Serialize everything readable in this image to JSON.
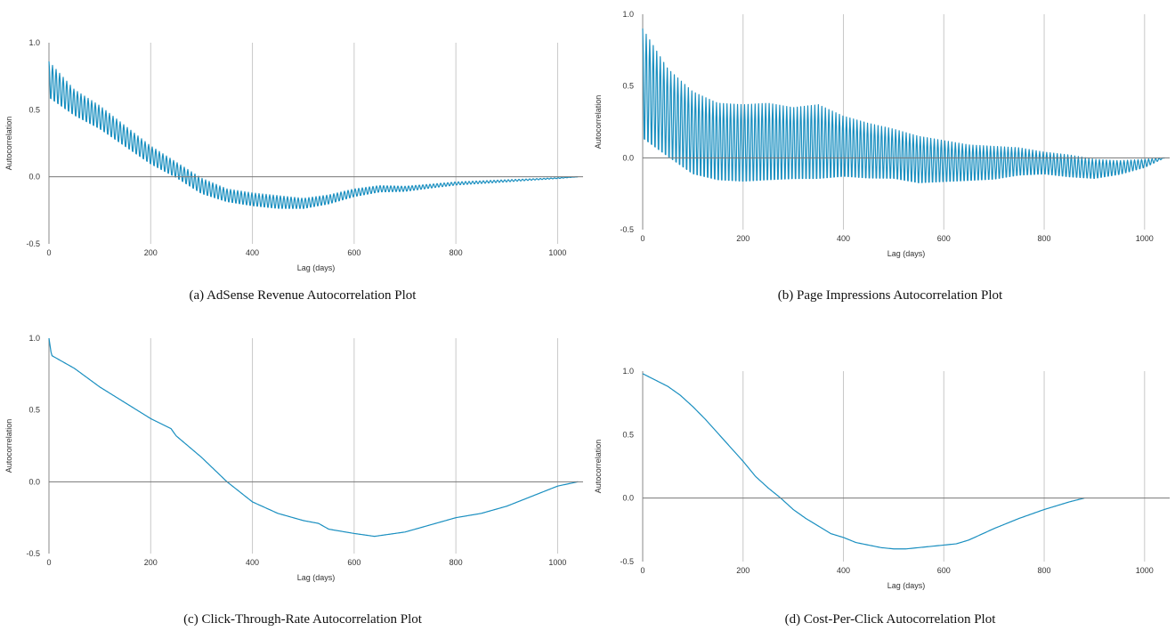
{
  "chart_data": [
    {
      "type": "line",
      "caption": "(a) AdSense Revenue Autocorrelation Plot",
      "xlabel": "Lag (days)",
      "ylabel": "Autocorrelation",
      "xlim": [
        0,
        1050
      ],
      "ylim": [
        -0.5,
        1.0
      ],
      "xticks": [
        "0",
        "200",
        "400",
        "600",
        "800",
        "1000"
      ],
      "yticks": [
        "-0.5",
        "0.0",
        "0.5",
        "1.0"
      ],
      "grid": "vertical",
      "series": [
        {
          "color": "#1a8fc0",
          "oscillation_period_days": 7,
          "x": [
            0,
            50,
            100,
            150,
            200,
            250,
            300,
            350,
            400,
            450,
            500,
            550,
            600,
            650,
            700,
            750,
            800,
            850,
            900,
            950,
            1000,
            1040
          ],
          "mean": [
            0.72,
            0.55,
            0.44,
            0.3,
            0.16,
            0.05,
            -0.07,
            -0.14,
            -0.17,
            -0.19,
            -0.2,
            -0.17,
            -0.12,
            -0.09,
            -0.09,
            -0.07,
            -0.05,
            -0.04,
            -0.03,
            -0.02,
            -0.01,
            0.0
          ],
          "amplitude": [
            0.14,
            0.1,
            0.09,
            0.08,
            0.07,
            0.06,
            0.06,
            0.05,
            0.05,
            0.05,
            0.04,
            0.035,
            0.03,
            0.025,
            0.02,
            0.015,
            0.012,
            0.01,
            0.008,
            0.005,
            0.003,
            0.0
          ]
        }
      ]
    },
    {
      "type": "line",
      "caption": "(b) Page Impressions Autocorrelation Plot",
      "xlabel": "Lag (days)",
      "ylabel": "Autocorrelation",
      "xlim": [
        0,
        1050
      ],
      "ylim": [
        -0.5,
        1.0
      ],
      "xticks": [
        "0",
        "200",
        "400",
        "600",
        "800",
        "1000"
      ],
      "yticks": [
        "-0.5",
        "0.0",
        "0.5",
        "1.0"
      ],
      "grid": "vertical",
      "series": [
        {
          "color": "#1a8fc0",
          "oscillation_period_days": 7,
          "x": [
            0,
            50,
            100,
            150,
            200,
            250,
            300,
            350,
            400,
            450,
            500,
            550,
            600,
            650,
            700,
            750,
            800,
            850,
            900,
            950,
            1000,
            1040
          ],
          "mean": [
            0.5,
            0.3,
            0.16,
            0.1,
            0.09,
            0.1,
            0.09,
            0.1,
            0.07,
            0.04,
            0.02,
            -0.02,
            -0.03,
            -0.04,
            -0.04,
            -0.03,
            -0.04,
            -0.06,
            -0.08,
            -0.07,
            -0.04,
            0.0
          ],
          "amplitude": [
            0.4,
            0.32,
            0.3,
            0.28,
            0.28,
            0.28,
            0.26,
            0.27,
            0.22,
            0.2,
            0.18,
            0.17,
            0.15,
            0.13,
            0.12,
            0.1,
            0.08,
            0.08,
            0.07,
            0.05,
            0.03,
            0.0
          ]
        }
      ]
    },
    {
      "type": "line",
      "caption": "(c) Click-Through-Rate Autocorrelation Plot",
      "xlabel": "Lag (days)",
      "ylabel": "Autocorrelation",
      "xlim": [
        0,
        1050
      ],
      "ylim": [
        -0.5,
        1.0
      ],
      "xticks": [
        "0",
        "200",
        "400",
        "600",
        "800",
        "1000"
      ],
      "yticks": [
        "-0.5",
        "0.0",
        "0.5",
        "1.0"
      ],
      "grid": "vertical",
      "series": [
        {
          "color": "#1a8fc0",
          "x": [
            0,
            5,
            20,
            50,
            100,
            150,
            200,
            240,
            250,
            300,
            350,
            400,
            450,
            500,
            530,
            550,
            600,
            640,
            700,
            750,
            800,
            850,
            900,
            950,
            1000,
            1040
          ],
          "y": [
            1.0,
            0.88,
            0.85,
            0.79,
            0.66,
            0.55,
            0.44,
            0.37,
            0.32,
            0.17,
            0.0,
            -0.14,
            -0.22,
            -0.27,
            -0.29,
            -0.33,
            -0.36,
            -0.38,
            -0.35,
            -0.3,
            -0.25,
            -0.22,
            -0.17,
            -0.1,
            -0.03,
            0.0
          ]
        }
      ]
    },
    {
      "type": "line",
      "caption": "(d) Cost-Per-Click Autocorrelation Plot",
      "xlabel": "Lag (days)",
      "ylabel": "Autocorrelation",
      "xlim": [
        0,
        1050
      ],
      "ylim": [
        -0.5,
        1.0
      ],
      "xticks": [
        "0",
        "200",
        "400",
        "600",
        "800",
        "1000"
      ],
      "yticks": [
        "-0.5",
        "0.0",
        "0.5",
        "1.0"
      ],
      "grid": "vertical",
      "series": [
        {
          "color": "#1a8fc0",
          "x": [
            0,
            25,
            50,
            75,
            100,
            125,
            150,
            175,
            200,
            225,
            250,
            275,
            300,
            325,
            350,
            375,
            400,
            425,
            450,
            475,
            500,
            525,
            550,
            575,
            600,
            625,
            650,
            700,
            750,
            800,
            850,
            880
          ],
          "y": [
            0.98,
            0.93,
            0.88,
            0.81,
            0.72,
            0.62,
            0.51,
            0.4,
            0.29,
            0.17,
            0.08,
            0.0,
            -0.09,
            -0.16,
            -0.22,
            -0.28,
            -0.31,
            -0.35,
            -0.37,
            -0.39,
            -0.4,
            -0.4,
            -0.39,
            -0.38,
            -0.37,
            -0.36,
            -0.33,
            -0.24,
            -0.16,
            -0.09,
            -0.03,
            0.0
          ]
        }
      ]
    }
  ]
}
